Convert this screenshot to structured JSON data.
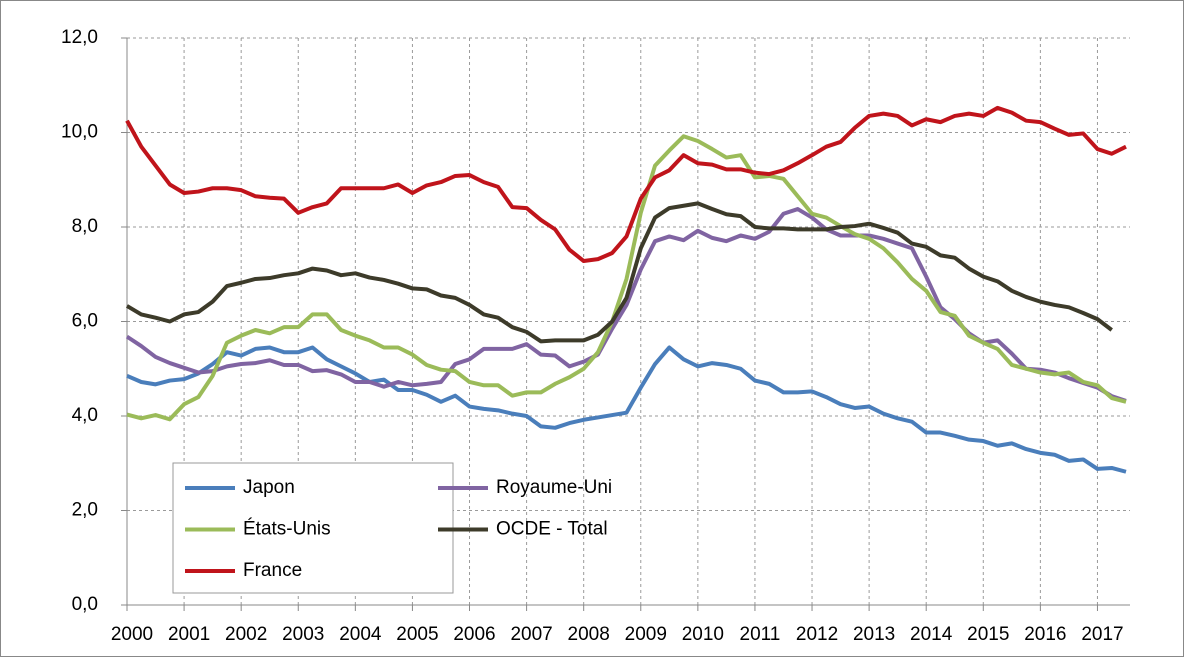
{
  "chart_data": {
    "type": "line",
    "categories": [
      "2000",
      null,
      null,
      null,
      "2001",
      null,
      null,
      null,
      "2002",
      null,
      null,
      null,
      "2003",
      null,
      null,
      null,
      "2004",
      null,
      null,
      null,
      "2005",
      null,
      null,
      null,
      "2006",
      null,
      null,
      null,
      "2007",
      null,
      null,
      null,
      "2008",
      null,
      null,
      null,
      "2009",
      null,
      null,
      null,
      "2010",
      null,
      null,
      null,
      "2011",
      null,
      null,
      null,
      "2012",
      null,
      null,
      null,
      "2013",
      null,
      null,
      null,
      "2014",
      null,
      null,
      null,
      "2015",
      null,
      null,
      null,
      "2016",
      null,
      null,
      null,
      "2017",
      null,
      null
    ],
    "series": [
      {
        "name": "Japon",
        "color": "#4a7ebb",
        "values": [
          4.85,
          4.72,
          4.67,
          4.75,
          4.78,
          4.9,
          5.1,
          5.35,
          5.28,
          5.42,
          5.45,
          5.35,
          5.35,
          5.45,
          5.2,
          5.05,
          4.9,
          4.72,
          4.77,
          4.55,
          4.55,
          4.45,
          4.3,
          4.43,
          4.2,
          4.15,
          4.12,
          4.05,
          4.0,
          3.78,
          3.75,
          3.85,
          3.92,
          3.97,
          4.02,
          4.07,
          4.6,
          5.1,
          5.45,
          5.2,
          5.05,
          5.12,
          5.08,
          5.0,
          4.75,
          4.68,
          4.5,
          4.5,
          4.52,
          4.4,
          4.25,
          4.17,
          4.2,
          4.05,
          3.95,
          3.88,
          3.65,
          3.65,
          3.58,
          3.5,
          3.47,
          3.37,
          3.42,
          3.3,
          3.22,
          3.18,
          3.05,
          3.08,
          2.88,
          2.9,
          2.82
        ]
      },
      {
        "name": "Royaume-Uni",
        "color": "#8064a2",
        "values": [
          5.68,
          5.48,
          5.25,
          5.12,
          5.02,
          4.92,
          4.95,
          5.05,
          5.1,
          5.12,
          5.18,
          5.08,
          5.08,
          4.95,
          4.97,
          4.88,
          4.72,
          4.72,
          4.62,
          4.72,
          4.65,
          4.68,
          4.72,
          5.1,
          5.2,
          5.42,
          5.42,
          5.42,
          5.52,
          5.3,
          5.28,
          5.05,
          5.15,
          5.3,
          5.85,
          6.35,
          7.1,
          7.7,
          7.8,
          7.72,
          7.92,
          7.77,
          7.7,
          7.82,
          7.75,
          7.9,
          8.28,
          8.38,
          8.2,
          7.95,
          7.82,
          7.82,
          7.82,
          7.75,
          7.65,
          7.55,
          6.95,
          6.3,
          6.05,
          5.75,
          5.55,
          5.6,
          5.32,
          5.0,
          4.98,
          4.92,
          4.8,
          4.7,
          4.6,
          4.42,
          4.32
        ]
      },
      {
        "name": "États-Unis",
        "color": "#9bbb59",
        "values": [
          4.03,
          3.95,
          4.02,
          3.93,
          4.25,
          4.4,
          4.85,
          5.55,
          5.7,
          5.82,
          5.75,
          5.88,
          5.88,
          6.15,
          6.15,
          5.82,
          5.7,
          5.6,
          5.45,
          5.45,
          5.3,
          5.08,
          4.98,
          4.95,
          4.72,
          4.65,
          4.65,
          4.43,
          4.5,
          4.5,
          4.68,
          4.82,
          5.0,
          5.35,
          6.0,
          6.9,
          8.3,
          9.3,
          9.62,
          9.92,
          9.82,
          9.65,
          9.47,
          9.52,
          9.05,
          9.08,
          9.02,
          8.65,
          8.28,
          8.2,
          8.02,
          7.85,
          7.75,
          7.55,
          7.25,
          6.9,
          6.65,
          6.2,
          6.12,
          5.7,
          5.55,
          5.42,
          5.08,
          5.0,
          4.92,
          4.88,
          4.92,
          4.72,
          4.65,
          4.38,
          4.3
        ]
      },
      {
        "name": "OCDE - Total",
        "color": "#3d3b2a",
        "values": [
          6.33,
          6.15,
          6.08,
          6.0,
          6.15,
          6.2,
          6.42,
          6.75,
          6.82,
          6.9,
          6.92,
          6.98,
          7.02,
          7.12,
          7.08,
          6.98,
          7.02,
          6.93,
          6.88,
          6.8,
          6.7,
          6.68,
          6.55,
          6.5,
          6.35,
          6.15,
          6.08,
          5.88,
          5.78,
          5.58,
          5.6,
          5.6,
          5.6,
          5.72,
          6.0,
          6.5,
          7.55,
          8.2,
          8.4,
          8.45,
          8.5,
          8.38,
          8.27,
          8.23,
          8.0,
          7.97,
          7.97,
          7.95,
          7.95,
          7.95,
          8.0,
          8.02,
          8.07,
          7.98,
          7.88,
          7.65,
          7.58,
          7.4,
          7.35,
          7.12,
          6.95,
          6.85,
          6.65,
          6.52,
          6.42,
          6.35,
          6.3,
          6.18,
          6.05,
          5.82,
          null
        ]
      },
      {
        "name": "France",
        "color": "#c0141b",
        "values": [
          10.25,
          9.7,
          9.3,
          8.9,
          8.72,
          8.75,
          8.82,
          8.82,
          8.78,
          8.65,
          8.62,
          8.6,
          8.3,
          8.42,
          8.5,
          8.82,
          8.82,
          8.82,
          8.82,
          8.9,
          8.72,
          8.88,
          8.95,
          9.08,
          9.1,
          8.95,
          8.85,
          8.42,
          8.4,
          8.15,
          7.95,
          7.52,
          7.28,
          7.32,
          7.45,
          7.8,
          8.6,
          9.05,
          9.2,
          9.52,
          9.35,
          9.32,
          9.22,
          9.22,
          9.15,
          9.12,
          9.2,
          9.35,
          9.52,
          9.7,
          9.8,
          10.1,
          10.35,
          10.4,
          10.35,
          10.15,
          10.28,
          10.22,
          10.35,
          10.4,
          10.35,
          10.52,
          10.42,
          10.25,
          10.22,
          10.08,
          9.95,
          9.98,
          9.65,
          9.55,
          9.7
        ]
      }
    ],
    "ylim": [
      0,
      12
    ],
    "yticks": [
      {
        "value": 0,
        "label": "0,0"
      },
      {
        "value": 2,
        "label": "2,0"
      },
      {
        "value": 4,
        "label": "4,0"
      },
      {
        "value": 6,
        "label": "6,0"
      },
      {
        "value": 8,
        "label": "8,0"
      },
      {
        "value": 10,
        "label": "10,0"
      },
      {
        "value": 12,
        "label": "12,0"
      }
    ],
    "grid": true,
    "legend": "bottom-left"
  }
}
